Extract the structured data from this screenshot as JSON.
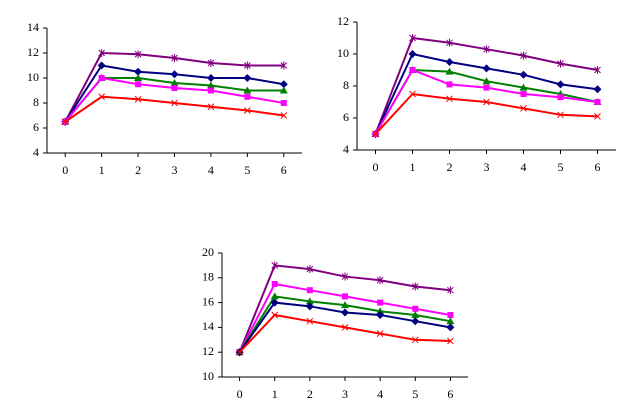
{
  "chart_data": [
    {
      "type": "line",
      "x": [
        0,
        1,
        2,
        3,
        4,
        5,
        6
      ],
      "xlim": [
        -0.5,
        6.5
      ],
      "xticks": [
        0,
        1,
        2,
        3,
        4,
        5,
        6
      ],
      "ylim": [
        4,
        14
      ],
      "yticks": [
        4,
        6,
        8,
        10,
        12,
        14
      ],
      "grid": false,
      "series": [
        {
          "color": "#800080",
          "marker": "star",
          "values": [
            6.5,
            12,
            11.9,
            11.6,
            11.2,
            11.0,
            11.0
          ]
        },
        {
          "color": "#000080",
          "marker": "diamond",
          "values": [
            6.5,
            11,
            10.5,
            10.3,
            10.0,
            10.0,
            9.5
          ]
        },
        {
          "color": "#008000",
          "marker": "triangle",
          "values": [
            6.5,
            10,
            10,
            9.6,
            9.4,
            9.0,
            9.0
          ]
        },
        {
          "color": "#ff00ff",
          "marker": "square",
          "values": [
            6.5,
            10,
            9.5,
            9.2,
            9.0,
            8.5,
            8.0
          ]
        },
        {
          "color": "#ff0000",
          "marker": "x",
          "values": [
            6.5,
            8.5,
            8.3,
            8.0,
            7.7,
            7.4,
            7.0
          ]
        }
      ]
    },
    {
      "type": "line",
      "x": [
        0,
        1,
        2,
        3,
        4,
        5,
        6
      ],
      "xlim": [
        -0.5,
        6.5
      ],
      "xticks": [
        0,
        1,
        2,
        3,
        4,
        5,
        6
      ],
      "ylim": [
        4,
        12
      ],
      "yticks": [
        4,
        6,
        8,
        10,
        12
      ],
      "grid": false,
      "series": [
        {
          "color": "#800080",
          "marker": "star",
          "values": [
            5,
            11,
            10.7,
            10.3,
            9.9,
            9.4,
            9.0
          ]
        },
        {
          "color": "#000080",
          "marker": "diamond",
          "values": [
            5,
            10,
            9.5,
            9.1,
            8.7,
            8.1,
            7.8
          ]
        },
        {
          "color": "#008000",
          "marker": "triangle",
          "values": [
            5,
            9,
            8.9,
            8.3,
            7.9,
            7.5,
            7.0
          ]
        },
        {
          "color": "#ff00ff",
          "marker": "square",
          "values": [
            5,
            9,
            8.1,
            7.9,
            7.5,
            7.3,
            7.0
          ]
        },
        {
          "color": "#ff0000",
          "marker": "x",
          "values": [
            5,
            7.5,
            7.2,
            7.0,
            6.6,
            6.2,
            6.1
          ]
        }
      ]
    },
    {
      "type": "line",
      "x": [
        0,
        1,
        2,
        3,
        4,
        5,
        6
      ],
      "xlim": [
        -0.5,
        6.5
      ],
      "xticks": [
        0,
        1,
        2,
        3,
        4,
        5,
        6
      ],
      "ylim": [
        10,
        20
      ],
      "yticks": [
        10,
        12,
        14,
        16,
        18,
        20
      ],
      "grid": false,
      "series": [
        {
          "color": "#800080",
          "marker": "star",
          "values": [
            12,
            19,
            18.7,
            18.1,
            17.8,
            17.3,
            17.0
          ]
        },
        {
          "color": "#ff00ff",
          "marker": "square",
          "values": [
            12,
            17.5,
            17.0,
            16.5,
            16.0,
            15.5,
            15.0
          ]
        },
        {
          "color": "#008000",
          "marker": "triangle",
          "values": [
            12,
            16.5,
            16.1,
            15.8,
            15.3,
            15.0,
            14.5
          ]
        },
        {
          "color": "#000080",
          "marker": "diamond",
          "values": [
            12,
            16.0,
            15.7,
            15.2,
            15.0,
            14.5,
            14.0
          ]
        },
        {
          "color": "#ff0000",
          "marker": "x",
          "values": [
            12,
            15,
            14.5,
            14.0,
            13.5,
            13.0,
            12.9
          ]
        }
      ]
    }
  ]
}
